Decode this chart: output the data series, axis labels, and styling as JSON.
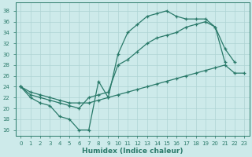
{
  "xlabel": "Humidex (Indice chaleur)",
  "bg_color": "#cdeaea",
  "line_color": "#2a7a6a",
  "grid_color": "#aed4d4",
  "xlim": [
    -0.5,
    23.5
  ],
  "ylim": [
    15,
    39.5
  ],
  "yticks": [
    16,
    18,
    20,
    22,
    24,
    26,
    28,
    30,
    32,
    34,
    36,
    38
  ],
  "xticks": [
    0,
    1,
    2,
    3,
    4,
    5,
    6,
    7,
    8,
    9,
    10,
    11,
    12,
    13,
    14,
    15,
    16,
    17,
    18,
    19,
    20,
    21,
    22,
    23
  ],
  "line_zigzag_x": [
    0,
    1,
    2,
    3,
    4,
    5,
    6,
    7,
    8,
    9,
    10,
    11,
    12,
    13,
    14,
    15,
    16,
    17,
    18,
    19,
    20,
    21
  ],
  "line_zigzag_y": [
    24,
    22,
    21,
    20.5,
    18.5,
    18,
    16,
    16,
    25,
    22,
    30,
    34,
    35.5,
    37,
    37.5,
    38,
    37,
    36.5,
    36.5,
    36.5,
    35,
    28.5
  ],
  "line_medium_x": [
    0,
    1,
    2,
    3,
    4,
    5,
    6,
    7,
    8,
    9,
    10,
    11,
    12,
    13,
    14,
    15,
    16,
    17,
    18,
    19,
    20,
    21,
    22
  ],
  "line_medium_y": [
    24,
    22.5,
    22,
    21.5,
    21,
    20.5,
    20,
    22,
    22.5,
    23,
    28,
    29,
    30.5,
    32,
    33,
    33.5,
    34,
    35,
    35.5,
    36,
    35,
    31,
    28.5
  ],
  "line_diagonal_x": [
    0,
    1,
    2,
    3,
    4,
    5,
    6,
    7,
    8,
    9,
    10,
    11,
    12,
    13,
    14,
    15,
    16,
    17,
    18,
    19,
    20,
    21,
    22,
    23
  ],
  "line_diagonal_y": [
    24,
    23,
    22.5,
    22,
    21.5,
    21,
    21,
    21,
    21.5,
    22,
    22.5,
    23,
    23.5,
    24,
    24.5,
    25,
    25.5,
    26,
    26.5,
    27,
    27.5,
    28,
    26.5,
    26.5
  ]
}
